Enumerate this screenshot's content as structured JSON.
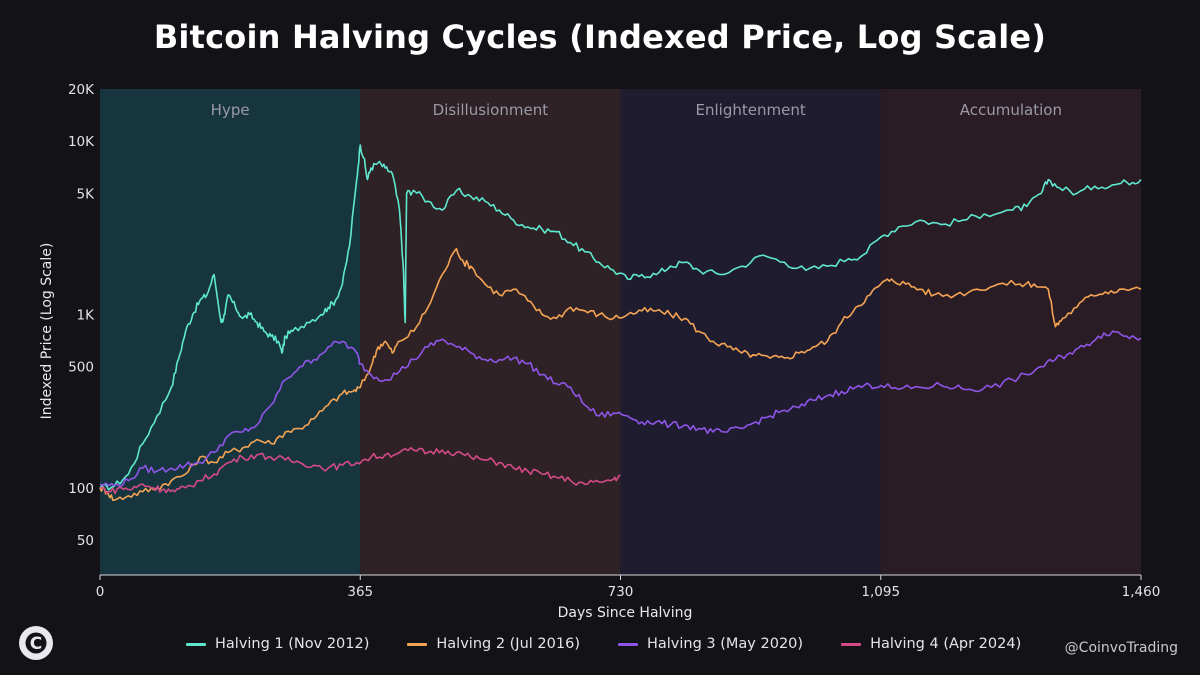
{
  "title": "Bitcoin Halving Cycles (Indexed Price, Log Scale)",
  "watermark": "@CoinvoTrading",
  "colors": {
    "background": "#121217",
    "h1": "#5fe8cf",
    "h2": "#f5a454",
    "h3": "#8f55e8",
    "h4": "#d44b86"
  },
  "chart_data": {
    "type": "line",
    "title": "Bitcoin Halving Cycles (Indexed Price, Log Scale)",
    "xlabel": "Days Since Halving",
    "ylabel": "Indexed Price (Log Scale)",
    "xlim": [
      0,
      1460
    ],
    "ylim": [
      30,
      20000
    ],
    "y_scale": "log",
    "x_ticks": [
      {
        "value": 0,
        "label": "0"
      },
      {
        "value": 365,
        "label": "365"
      },
      {
        "value": 730,
        "label": "730"
      },
      {
        "value": 1095,
        "label": "1,095"
      },
      {
        "value": 1460,
        "label": "1,460"
      }
    ],
    "y_ticks": [
      {
        "value": 50,
        "label": "50"
      },
      {
        "value": 100,
        "label": "100"
      },
      {
        "value": 500,
        "label": "500"
      },
      {
        "value": 1000,
        "label": "1K"
      },
      {
        "value": 5000,
        "label": "5K"
      },
      {
        "value": 10000,
        "label": "10K"
      },
      {
        "value": 20000,
        "label": "20K"
      }
    ],
    "phases": [
      {
        "label": "Hype",
        "start": 0,
        "end": 365,
        "color": "#17353f"
      },
      {
        "label": "Disillusionment",
        "start": 365,
        "end": 730,
        "color": "#2e2226"
      },
      {
        "label": "Enlightenment",
        "start": 730,
        "end": 1095,
        "color": "#1f1c2f"
      },
      {
        "label": "Accumulation",
        "start": 1095,
        "end": 1460,
        "color": "#2a1c24"
      }
    ],
    "legend_position": "bottom",
    "series": [
      {
        "name": "Halving 1 (Nov 2012)",
        "color": "#5fe8cf",
        "points": [
          [
            0,
            100
          ],
          [
            20,
            102
          ],
          [
            40,
            120
          ],
          [
            60,
            180
          ],
          [
            80,
            260
          ],
          [
            100,
            380
          ],
          [
            110,
            550
          ],
          [
            120,
            800
          ],
          [
            130,
            1000
          ],
          [
            140,
            1200
          ],
          [
            150,
            1300
          ],
          [
            160,
            1700
          ],
          [
            170,
            900
          ],
          [
            175,
            1000
          ],
          [
            180,
            1300
          ],
          [
            190,
            1100
          ],
          [
            200,
            950
          ],
          [
            210,
            1000
          ],
          [
            220,
            900
          ],
          [
            230,
            800
          ],
          [
            240,
            750
          ],
          [
            250,
            700
          ],
          [
            255,
            600
          ],
          [
            260,
            750
          ],
          [
            270,
            800
          ],
          [
            290,
            900
          ],
          [
            310,
            1000
          ],
          [
            320,
            1100
          ],
          [
            330,
            1200
          ],
          [
            340,
            1500
          ],
          [
            350,
            2500
          ],
          [
            360,
            6000
          ],
          [
            365,
            9500
          ],
          [
            370,
            8000
          ],
          [
            375,
            6000
          ],
          [
            380,
            7000
          ],
          [
            390,
            7500
          ],
          [
            400,
            7000
          ],
          [
            410,
            6500
          ],
          [
            420,
            4000
          ],
          [
            425,
            2000
          ],
          [
            428,
            900
          ],
          [
            430,
            5000
          ],
          [
            440,
            5200
          ],
          [
            460,
            4500
          ],
          [
            480,
            4000
          ],
          [
            500,
            5200
          ],
          [
            520,
            4800
          ],
          [
            540,
            4500
          ],
          [
            560,
            4000
          ],
          [
            580,
            3500
          ],
          [
            600,
            3200
          ],
          [
            620,
            3100
          ],
          [
            640,
            3000
          ],
          [
            660,
            2600
          ],
          [
            680,
            2300
          ],
          [
            700,
            2000
          ],
          [
            720,
            1800
          ],
          [
            740,
            1600
          ],
          [
            760,
            1700
          ],
          [
            780,
            1700
          ],
          [
            800,
            1900
          ],
          [
            820,
            2000
          ],
          [
            840,
            1800
          ],
          [
            870,
            1700
          ],
          [
            900,
            1900
          ],
          [
            930,
            2200
          ],
          [
            960,
            2000
          ],
          [
            990,
            1800
          ],
          [
            1020,
            1900
          ],
          [
            1050,
            2100
          ],
          [
            1070,
            2200
          ],
          [
            1095,
            2800
          ],
          [
            1120,
            3200
          ],
          [
            1150,
            3500
          ],
          [
            1180,
            3300
          ],
          [
            1210,
            3500
          ],
          [
            1240,
            3800
          ],
          [
            1280,
            4000
          ],
          [
            1300,
            4200
          ],
          [
            1320,
            5000
          ],
          [
            1330,
            6000
          ],
          [
            1345,
            5400
          ],
          [
            1370,
            5000
          ],
          [
            1395,
            5500
          ],
          [
            1420,
            5600
          ],
          [
            1440,
            5800
          ],
          [
            1460,
            6000
          ]
        ]
      },
      {
        "name": "Halving 2 (Jul 2016)",
        "color": "#f5a454",
        "points": [
          [
            0,
            100
          ],
          [
            10,
            95
          ],
          [
            20,
            85
          ],
          [
            40,
            90
          ],
          [
            60,
            95
          ],
          [
            80,
            100
          ],
          [
            100,
            110
          ],
          [
            120,
            120
          ],
          [
            140,
            150
          ],
          [
            160,
            140
          ],
          [
            180,
            160
          ],
          [
            200,
            170
          ],
          [
            220,
            190
          ],
          [
            240,
            180
          ],
          [
            260,
            210
          ],
          [
            280,
            220
          ],
          [
            300,
            250
          ],
          [
            320,
            300
          ],
          [
            340,
            350
          ],
          [
            355,
            360
          ],
          [
            365,
            380
          ],
          [
            380,
            500
          ],
          [
            390,
            650
          ],
          [
            400,
            700
          ],
          [
            410,
            600
          ],
          [
            420,
            700
          ],
          [
            440,
            800
          ],
          [
            460,
            1100
          ],
          [
            480,
            1700
          ],
          [
            500,
            2400
          ],
          [
            510,
            2000
          ],
          [
            520,
            1900
          ],
          [
            540,
            1500
          ],
          [
            560,
            1300
          ],
          [
            580,
            1400
          ],
          [
            600,
            1200
          ],
          [
            620,
            1000
          ],
          [
            640,
            950
          ],
          [
            660,
            1100
          ],
          [
            680,
            1050
          ],
          [
            700,
            1000
          ],
          [
            720,
            950
          ],
          [
            740,
            1000
          ],
          [
            760,
            1050
          ],
          [
            780,
            1050
          ],
          [
            800,
            1000
          ],
          [
            820,
            950
          ],
          [
            840,
            800
          ],
          [
            860,
            700
          ],
          [
            880,
            650
          ],
          [
            900,
            600
          ],
          [
            920,
            580
          ],
          [
            940,
            560
          ],
          [
            960,
            560
          ],
          [
            980,
            600
          ],
          [
            1000,
            650
          ],
          [
            1020,
            700
          ],
          [
            1040,
            900
          ],
          [
            1060,
            1100
          ],
          [
            1080,
            1300
          ],
          [
            1095,
            1500
          ],
          [
            1110,
            1600
          ],
          [
            1130,
            1500
          ],
          [
            1150,
            1400
          ],
          [
            1170,
            1300
          ],
          [
            1200,
            1300
          ],
          [
            1230,
            1400
          ],
          [
            1260,
            1500
          ],
          [
            1290,
            1500
          ],
          [
            1310,
            1500
          ],
          [
            1330,
            1400
          ],
          [
            1340,
            850
          ],
          [
            1350,
            950
          ],
          [
            1370,
            1100
          ],
          [
            1390,
            1300
          ],
          [
            1410,
            1350
          ],
          [
            1430,
            1400
          ],
          [
            1460,
            1400
          ]
        ]
      },
      {
        "name": "Halving 3 (May 2020)",
        "color": "#8f55e8",
        "points": [
          [
            0,
            105
          ],
          [
            20,
            103
          ],
          [
            40,
            110
          ],
          [
            60,
            130
          ],
          [
            80,
            125
          ],
          [
            100,
            130
          ],
          [
            120,
            135
          ],
          [
            140,
            140
          ],
          [
            160,
            160
          ],
          [
            180,
            200
          ],
          [
            200,
            210
          ],
          [
            220,
            230
          ],
          [
            240,
            300
          ],
          [
            260,
            420
          ],
          [
            280,
            500
          ],
          [
            300,
            550
          ],
          [
            320,
            650
          ],
          [
            340,
            700
          ],
          [
            360,
            600
          ],
          [
            365,
            520
          ],
          [
            380,
            450
          ],
          [
            400,
            420
          ],
          [
            420,
            470
          ],
          [
            440,
            550
          ],
          [
            460,
            650
          ],
          [
            480,
            720
          ],
          [
            500,
            650
          ],
          [
            520,
            600
          ],
          [
            540,
            550
          ],
          [
            560,
            550
          ],
          [
            580,
            560
          ],
          [
            600,
            520
          ],
          [
            620,
            450
          ],
          [
            640,
            400
          ],
          [
            660,
            380
          ],
          [
            680,
            300
          ],
          [
            700,
            260
          ],
          [
            720,
            270
          ],
          [
            740,
            260
          ],
          [
            760,
            240
          ],
          [
            780,
            240
          ],
          [
            800,
            230
          ],
          [
            820,
            230
          ],
          [
            840,
            220
          ],
          [
            860,
            210
          ],
          [
            880,
            210
          ],
          [
            900,
            220
          ],
          [
            920,
            240
          ],
          [
            940,
            260
          ],
          [
            960,
            280
          ],
          [
            980,
            290
          ],
          [
            1000,
            320
          ],
          [
            1020,
            340
          ],
          [
            1040,
            360
          ],
          [
            1060,
            380
          ],
          [
            1080,
            390
          ],
          [
            1095,
            390
          ],
          [
            1120,
            370
          ],
          [
            1150,
            380
          ],
          [
            1180,
            390
          ],
          [
            1200,
            380
          ],
          [
            1220,
            370
          ],
          [
            1250,
            380
          ],
          [
            1280,
            420
          ],
          [
            1300,
            450
          ],
          [
            1320,
            500
          ],
          [
            1340,
            550
          ],
          [
            1360,
            600
          ],
          [
            1380,
            650
          ],
          [
            1400,
            750
          ],
          [
            1420,
            800
          ],
          [
            1440,
            750
          ],
          [
            1460,
            730
          ]
        ]
      },
      {
        "name": "Halving 4 (Apr 2024)",
        "color": "#d44b86",
        "points": [
          [
            0,
            100
          ],
          [
            15,
            95
          ],
          [
            30,
            100
          ],
          [
            45,
            98
          ],
          [
            60,
            105
          ],
          [
            75,
            100
          ],
          [
            90,
            98
          ],
          [
            105,
            95
          ],
          [
            120,
            100
          ],
          [
            140,
            110
          ],
          [
            160,
            120
          ],
          [
            180,
            140
          ],
          [
            200,
            150
          ],
          [
            220,
            155
          ],
          [
            240,
            150
          ],
          [
            260,
            145
          ],
          [
            280,
            140
          ],
          [
            300,
            135
          ],
          [
            320,
            130
          ],
          [
            340,
            135
          ],
          [
            360,
            140
          ],
          [
            380,
            150
          ],
          [
            400,
            155
          ],
          [
            420,
            160
          ],
          [
            440,
            165
          ],
          [
            460,
            160
          ],
          [
            480,
            165
          ],
          [
            500,
            160
          ],
          [
            520,
            150
          ],
          [
            540,
            145
          ],
          [
            560,
            140
          ],
          [
            580,
            130
          ],
          [
            600,
            125
          ],
          [
            620,
            120
          ],
          [
            640,
            115
          ],
          [
            660,
            110
          ],
          [
            680,
            105
          ],
          [
            700,
            108
          ],
          [
            720,
            112
          ],
          [
            730,
            118
          ]
        ]
      }
    ]
  }
}
